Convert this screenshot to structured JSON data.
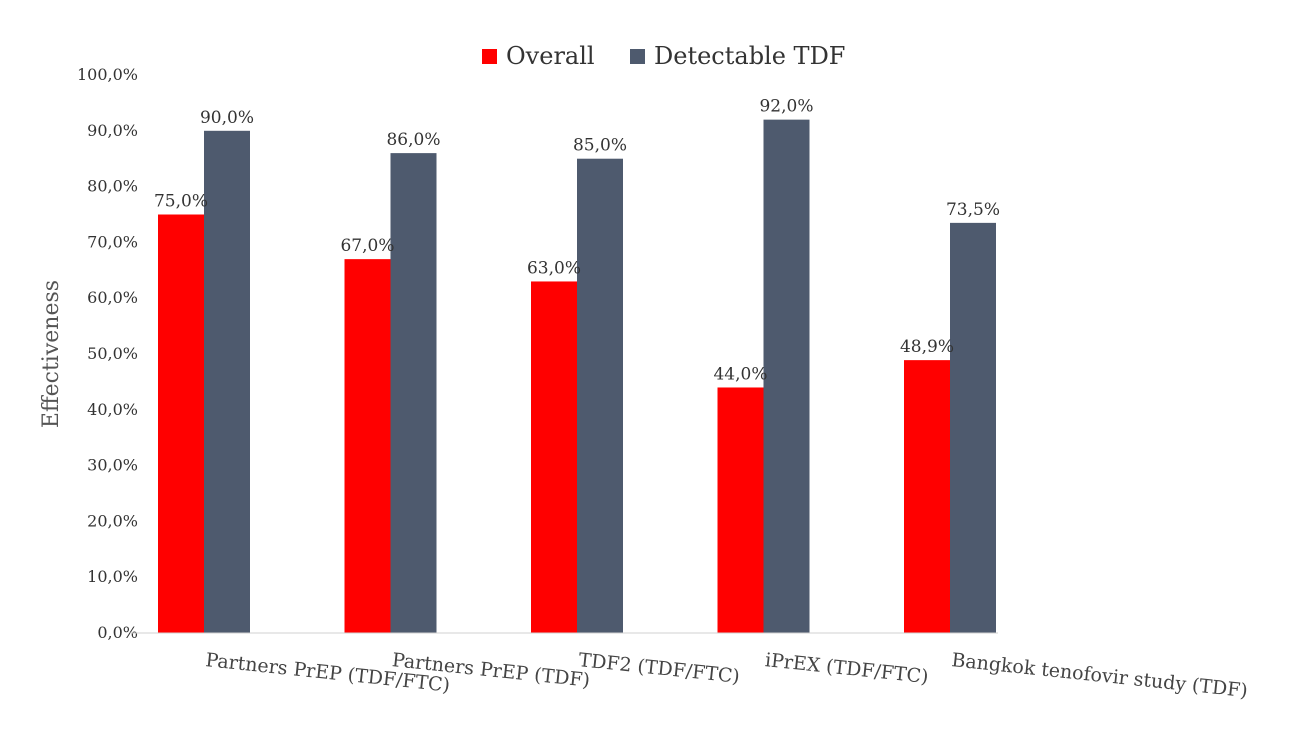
{
  "chart_data": {
    "type": "bar",
    "categories": [
      "Partners PrEP (TDF/FTC)",
      "Partners PrEP (TDF)",
      "TDF2 (TDF/FTC)",
      "iPrEX (TDF/FTC)",
      "Bangkok tenofovir study (TDF)"
    ],
    "series": [
      {
        "name": "Overall",
        "color": "#ff0000",
        "values": [
          75.0,
          67.0,
          63.0,
          44.0,
          48.9
        ],
        "labels": [
          "75,0%",
          "67,0%",
          "63,0%",
          "44,0%",
          "48,9%"
        ]
      },
      {
        "name": "Detectable TDF",
        "color": "#4e5a6e",
        "values": [
          90.0,
          86.0,
          85.0,
          92.0,
          73.5
        ],
        "labels": [
          "90,0%",
          "86,0%",
          "85,0%",
          "92,0%",
          "73,5%"
        ]
      }
    ],
    "ylabel": "Effectiveness",
    "xlabel": "",
    "ylim": [
      0,
      100
    ],
    "yticks": [
      0,
      10,
      20,
      30,
      40,
      50,
      60,
      70,
      80,
      90,
      100
    ],
    "ytick_labels": [
      "0,0%",
      "10,0%",
      "20,0%",
      "30,0%",
      "40,0%",
      "50,0%",
      "60,0%",
      "70,0%",
      "80,0%",
      "90,0%",
      "100,0%"
    ],
    "grid": false,
    "legend_position": "top"
  }
}
